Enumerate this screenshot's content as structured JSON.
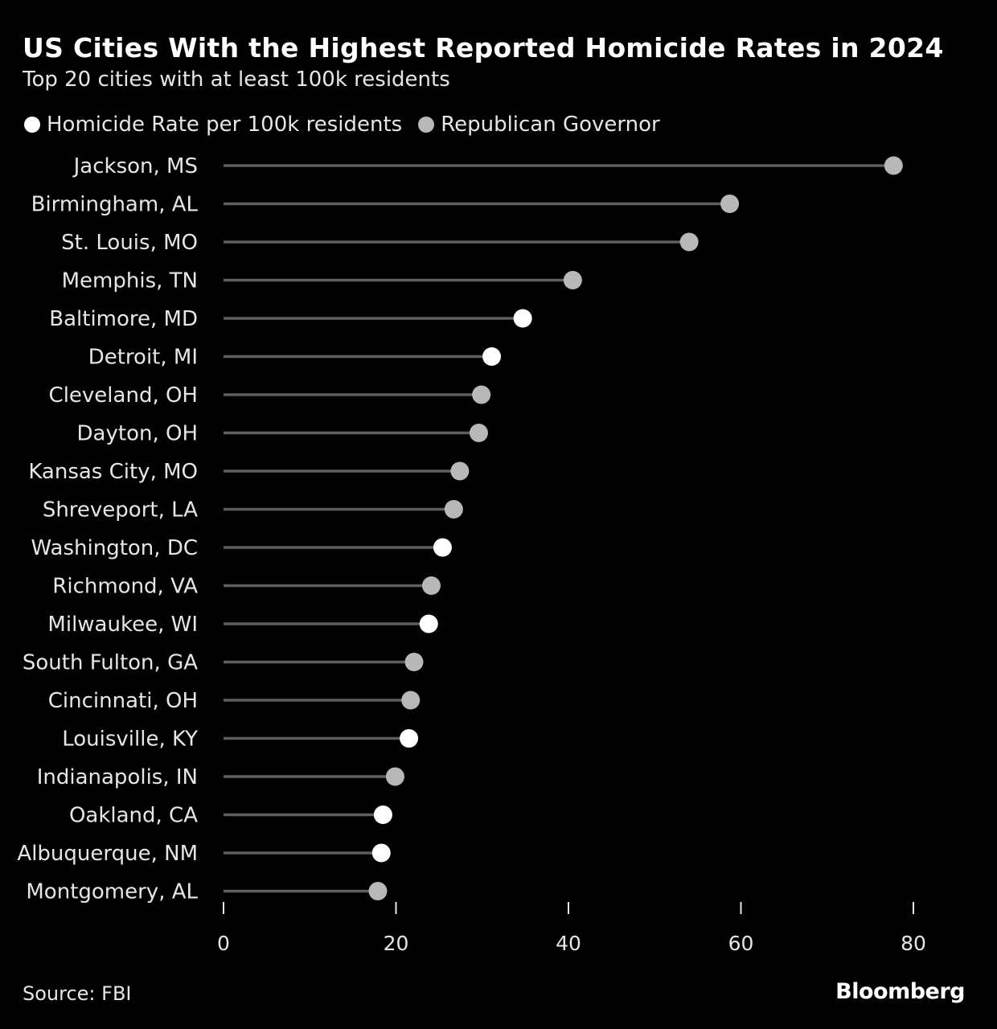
{
  "title": "US Cities With the Highest Reported Homicide Rates in 2024",
  "subtitle": "Top 20 cities with at least 100k residents",
  "source": "Source: FBI",
  "logo": "Bloomberg",
  "colors": {
    "democrat_or_other": "#ffffff",
    "republican": "#b8b8b8",
    "stem": "#5e5e5e",
    "background": "#000000"
  },
  "chart_data": {
    "type": "lollipop",
    "legend": [
      {
        "label": "Homicide Rate per 100k residents",
        "color": "#ffffff"
      },
      {
        "label": "Republican Governor",
        "color": "#b8b8b8"
      }
    ],
    "legend_position": "top-left",
    "xlim": [
      0,
      80
    ],
    "xticks": [
      0,
      20,
      40,
      60,
      80
    ],
    "grid": false,
    "points": [
      {
        "city": "Jackson, MS",
        "value": 77.7,
        "republican_governor": true
      },
      {
        "city": "Birmingham, AL",
        "value": 58.7,
        "republican_governor": true
      },
      {
        "city": "St. Louis, MO",
        "value": 54.0,
        "republican_governor": true
      },
      {
        "city": "Memphis, TN",
        "value": 40.5,
        "republican_governor": true
      },
      {
        "city": "Baltimore, MD",
        "value": 34.7,
        "republican_governor": false
      },
      {
        "city": "Detroit, MI",
        "value": 31.1,
        "republican_governor": false
      },
      {
        "city": "Cleveland, OH",
        "value": 29.9,
        "republican_governor": true
      },
      {
        "city": "Dayton, OH",
        "value": 29.6,
        "republican_governor": true
      },
      {
        "city": "Kansas City, MO",
        "value": 27.4,
        "republican_governor": true
      },
      {
        "city": "Shreveport, LA",
        "value": 26.7,
        "republican_governor": true
      },
      {
        "city": "Washington, DC",
        "value": 25.4,
        "republican_governor": false
      },
      {
        "city": "Richmond, VA",
        "value": 24.1,
        "republican_governor": true
      },
      {
        "city": "Milwaukee, WI",
        "value": 23.8,
        "republican_governor": false
      },
      {
        "city": "South Fulton, GA",
        "value": 22.1,
        "republican_governor": true
      },
      {
        "city": "Cincinnati, OH",
        "value": 21.7,
        "republican_governor": true
      },
      {
        "city": "Louisville, KY",
        "value": 21.5,
        "republican_governor": false
      },
      {
        "city": "Indianapolis, IN",
        "value": 19.9,
        "republican_governor": true
      },
      {
        "city": "Oakland, CA",
        "value": 18.5,
        "republican_governor": false
      },
      {
        "city": "Albuquerque, NM",
        "value": 18.3,
        "republican_governor": false
      },
      {
        "city": "Montgomery, AL",
        "value": 17.9,
        "republican_governor": true
      }
    ]
  }
}
